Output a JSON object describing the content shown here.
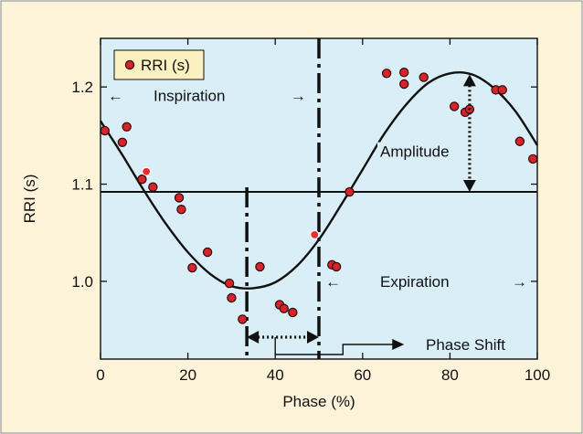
{
  "colors": {
    "frame_bg": "#fdf3d9",
    "frame_border": "#9a9a9a",
    "plot_bg": "#d9eef7",
    "curve": "#111111",
    "point_fill": "#d8232a",
    "point_highlight": "#ef2b2b",
    "legend_bg": "#fbf0c0"
  },
  "chart_data": {
    "type": "scatter",
    "title": "",
    "xlabel": "Phase (%)",
    "ylabel": "RRI (s)",
    "xlim": [
      0,
      100
    ],
    "ylim": [
      0.92,
      1.25
    ],
    "xticks": [
      0,
      20,
      40,
      60,
      80,
      100
    ],
    "yticks": [
      1.0,
      1.1,
      1.2
    ],
    "ytick_labels": [
      "1.0",
      "1.1",
      "1.2"
    ],
    "grid": false,
    "legend": {
      "placement": "top-left",
      "entries": [
        "RRI (s)"
      ]
    },
    "series": [
      {
        "name": "RRI (s)",
        "marker": "circle",
        "points": [
          [
            1,
            1.155
          ],
          [
            5,
            1.143
          ],
          [
            6,
            1.159
          ],
          [
            9.5,
            1.105
          ],
          [
            12,
            1.097
          ],
          [
            18,
            1.086
          ],
          [
            18.5,
            1.074
          ],
          [
            21,
            1.014
          ],
          [
            24.5,
            1.03
          ],
          [
            29.5,
            0.998
          ],
          [
            30,
            0.983
          ],
          [
            32.5,
            0.961
          ],
          [
            36.5,
            1.015
          ],
          [
            41,
            0.976
          ],
          [
            42,
            0.972
          ],
          [
            44,
            0.968
          ],
          [
            53,
            1.017
          ],
          [
            54,
            1.015
          ],
          [
            57,
            1.092
          ],
          [
            65.5,
            1.214
          ],
          [
            69.5,
            1.215
          ],
          [
            69.5,
            1.203
          ],
          [
            74,
            1.21
          ],
          [
            81,
            1.18
          ],
          [
            83.5,
            1.174
          ],
          [
            84.5,
            1.177
          ],
          [
            90.5,
            1.197
          ],
          [
            92,
            1.197
          ],
          [
            96,
            1.144
          ],
          [
            99,
            1.126
          ]
        ],
        "highlighted_points": [
          [
            10.5,
            1.113
          ],
          [
            49,
            1.048
          ]
        ]
      },
      {
        "name": "",
        "type": "line",
        "x": [
          0,
          5,
          10,
          15,
          20,
          25,
          30,
          35,
          40,
          45,
          50,
          55,
          60,
          65,
          70,
          75,
          80,
          85,
          90,
          95,
          100
        ],
        "y": [
          1.165,
          1.13,
          1.093,
          1.059,
          1.03,
          1.008,
          0.995,
          0.993,
          0.999,
          1.016,
          1.043,
          1.078,
          1.115,
          1.152,
          1.182,
          1.204,
          1.214,
          1.213,
          1.199,
          1.175,
          1.14
        ]
      }
    ],
    "reference_lines": {
      "mean_y": 1.092,
      "dashdot_long_x": 50,
      "dashdot_short_x": 33.5
    },
    "annotations": {
      "inspiration": {
        "text": "Inspiration",
        "left_arrow": "←",
        "right_arrow": "→"
      },
      "expiration": {
        "text": "Expiration",
        "left_arrow": "←",
        "right_arrow": "→"
      },
      "amplitude": {
        "text": "Amplitude",
        "x": 84.5,
        "y_from": 1.213,
        "y_to": 1.092
      },
      "phase_shift": {
        "text": "Phase Shift",
        "x_from": 33.5,
        "x_to": 50
      }
    }
  }
}
